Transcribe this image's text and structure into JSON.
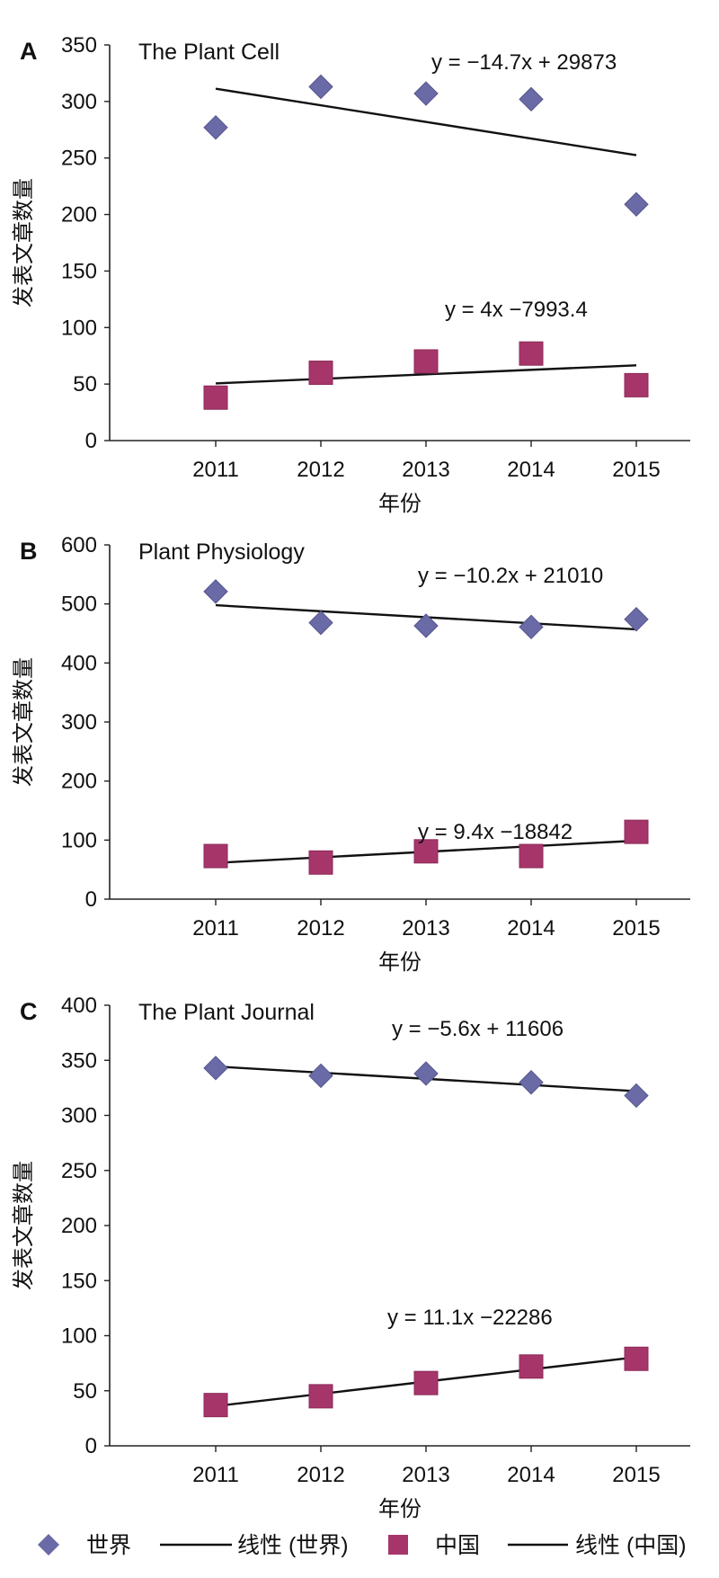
{
  "chart_data": [
    {
      "type": "scatter",
      "panel_letter": "A",
      "title": "The Plant Cell",
      "xlabel": "年份",
      "ylabel": "发表文章数量",
      "categories": [
        "2011",
        "2012",
        "2013",
        "2014",
        "2015"
      ],
      "ylim": [
        0,
        350
      ],
      "yticks": [
        0,
        50,
        100,
        150,
        200,
        250,
        300,
        350
      ],
      "grid": false,
      "series": [
        {
          "name": "世界",
          "marker": "diamond",
          "color": "#6a6aa6",
          "values": [
            277,
            313,
            307,
            302,
            209
          ],
          "trend": {
            "slope": -14.7,
            "intercept": 29873,
            "equation": "y = −14.7x + 29873"
          }
        },
        {
          "name": "中国",
          "marker": "square",
          "color": "#a6366a",
          "values": [
            38,
            60,
            70,
            77,
            49
          ],
          "trend": {
            "slope": 4,
            "intercept": -7993.4,
            "equation": "y = 4x −7993.4"
          }
        }
      ]
    },
    {
      "type": "scatter",
      "panel_letter": "B",
      "title": "Plant Physiology",
      "xlabel": "年份",
      "ylabel": "发表文章数量",
      "categories": [
        "2011",
        "2012",
        "2013",
        "2014",
        "2015"
      ],
      "ylim": [
        0,
        600
      ],
      "yticks": [
        0,
        100,
        200,
        300,
        400,
        500,
        600
      ],
      "grid": false,
      "series": [
        {
          "name": "世界",
          "marker": "diamond",
          "color": "#6a6aa6",
          "values": [
            521,
            468,
            463,
            461,
            474
          ],
          "trend": {
            "slope": -10.2,
            "intercept": 21010,
            "equation": "y = −10.2x + 21010"
          }
        },
        {
          "name": "中国",
          "marker": "square",
          "color": "#a6366a",
          "values": [
            73,
            62,
            81,
            73,
            114
          ],
          "trend": {
            "slope": 9.4,
            "intercept": -18842,
            "equation": "y = 9.4x −18842"
          }
        }
      ]
    },
    {
      "type": "scatter",
      "panel_letter": "C",
      "title": "The Plant Journal",
      "xlabel": "年份",
      "ylabel": "发表文章数量",
      "categories": [
        "2011",
        "2012",
        "2013",
        "2014",
        "2015"
      ],
      "ylim": [
        0,
        400
      ],
      "yticks": [
        0,
        50,
        100,
        150,
        200,
        250,
        300,
        350,
        400
      ],
      "grid": false,
      "series": [
        {
          "name": "世界",
          "marker": "diamond",
          "color": "#6a6aa6",
          "values": [
            343,
            336,
            338,
            330,
            318
          ],
          "trend": {
            "slope": -5.6,
            "intercept": 11606,
            "equation": "y = −5.6x + 11606"
          }
        },
        {
          "name": "中国",
          "marker": "square",
          "color": "#a6366a",
          "values": [
            37,
            45,
            57,
            72,
            79
          ],
          "trend": {
            "slope": 11.1,
            "intercept": -22286,
            "equation": "y = 11.1x −22286"
          }
        }
      ]
    }
  ],
  "legend": {
    "placement": "bottom",
    "items": [
      {
        "label": "世界",
        "kind": "diamond",
        "color": "#6a6aa6"
      },
      {
        "label": "线性 (世界)",
        "kind": "line",
        "color": "#111111"
      },
      {
        "label": "中国",
        "kind": "square",
        "color": "#a6366a"
      },
      {
        "label": "线性 (中国)",
        "kind": "line",
        "color": "#111111"
      }
    ]
  }
}
